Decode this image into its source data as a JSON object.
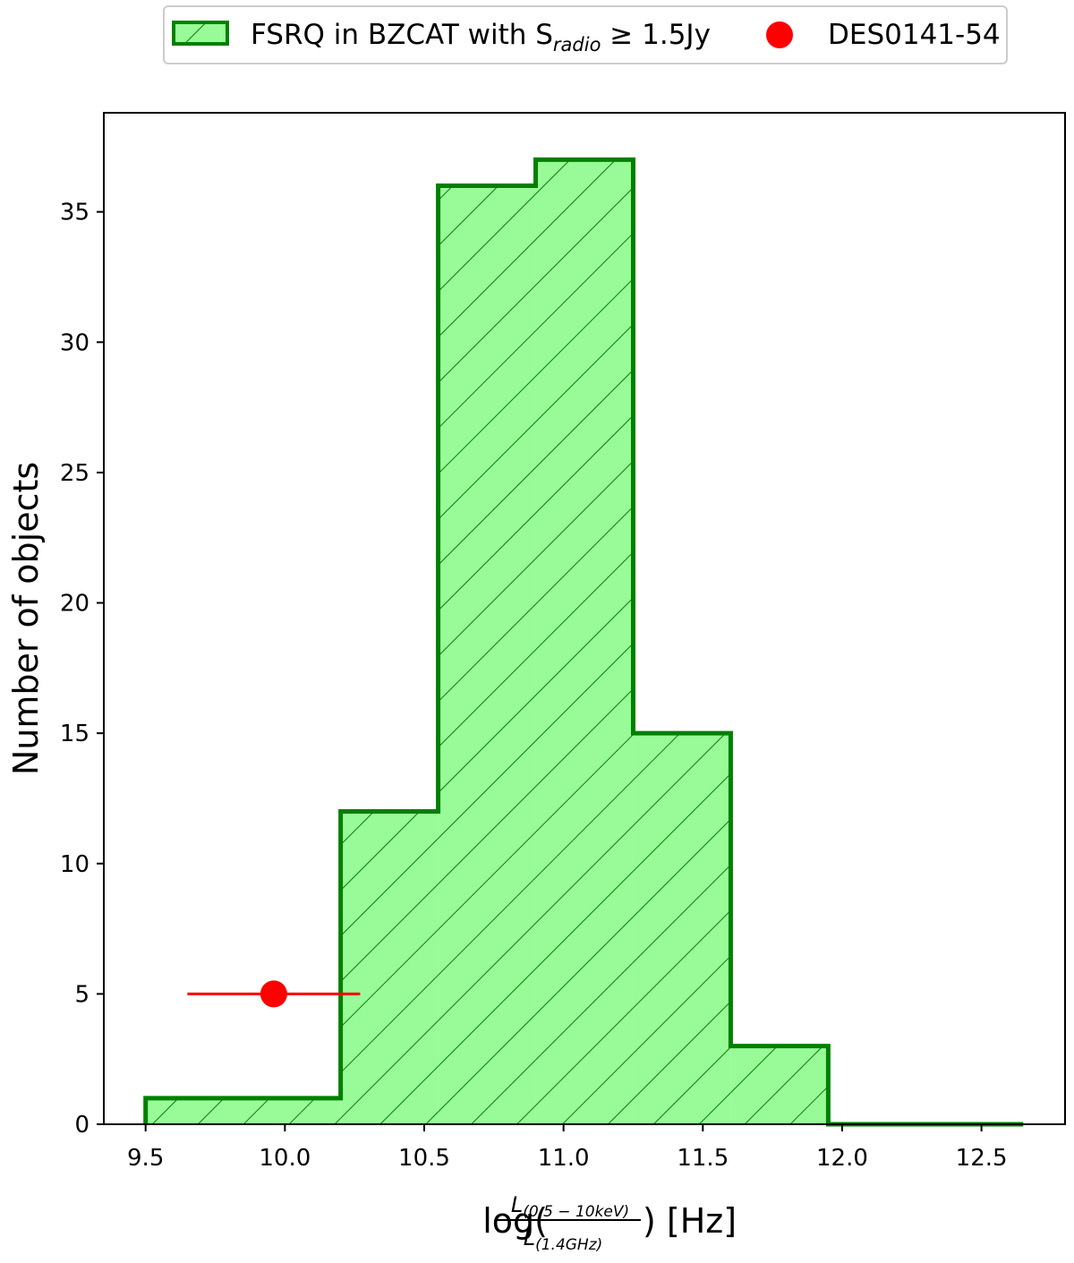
{
  "chart_data": {
    "type": "bar",
    "subtype": "histogram",
    "xlabel": {
      "prefix": "log(",
      "numerator_main": "L",
      "numerator_sub": "(0.5 − 10keV)",
      "denominator_main": "L",
      "denominator_sub": "(1.4GHz)",
      "suffix": ") [Hz]"
    },
    "ylabel": "Number of objects",
    "xlim": [
      9.35,
      12.8
    ],
    "ylim": [
      0,
      38.8
    ],
    "xticks": [
      9.5,
      10.0,
      10.5,
      11.0,
      11.5,
      12.0,
      12.5
    ],
    "xtick_labels": [
      "9.5",
      "10.0",
      "10.5",
      "11.0",
      "11.5",
      "12.0",
      "12.5"
    ],
    "yticks": [
      0,
      5,
      10,
      15,
      20,
      25,
      30,
      35
    ],
    "ytick_labels": [
      "0",
      "5",
      "10",
      "15",
      "20",
      "25",
      "30",
      "35"
    ],
    "grid": false,
    "legend_placement": "top-center, outside plot",
    "series": [
      {
        "name": "FSRQ in BZCAT with S_radio ≥ 1.5Jy",
        "legend_text": {
          "pre": "FSRQ in BZCAT with S",
          "sub": "radio",
          "post": " ≥ 1.5Jy"
        },
        "kind": "histogram",
        "bin_edges": [
          9.5,
          10.2,
          10.55,
          10.9,
          11.25,
          11.6,
          11.95,
          12.65
        ],
        "counts": [
          1,
          12,
          36,
          37,
          15,
          3,
          0
        ],
        "fill_color": "#98fb98",
        "edge_color": "#008000",
        "hatch": "/"
      },
      {
        "name": "DES0141-54",
        "kind": "point",
        "x": 9.96,
        "y": 5,
        "xerr_low": 9.65,
        "xerr_high": 10.27,
        "color": "#ff0000"
      }
    ]
  }
}
